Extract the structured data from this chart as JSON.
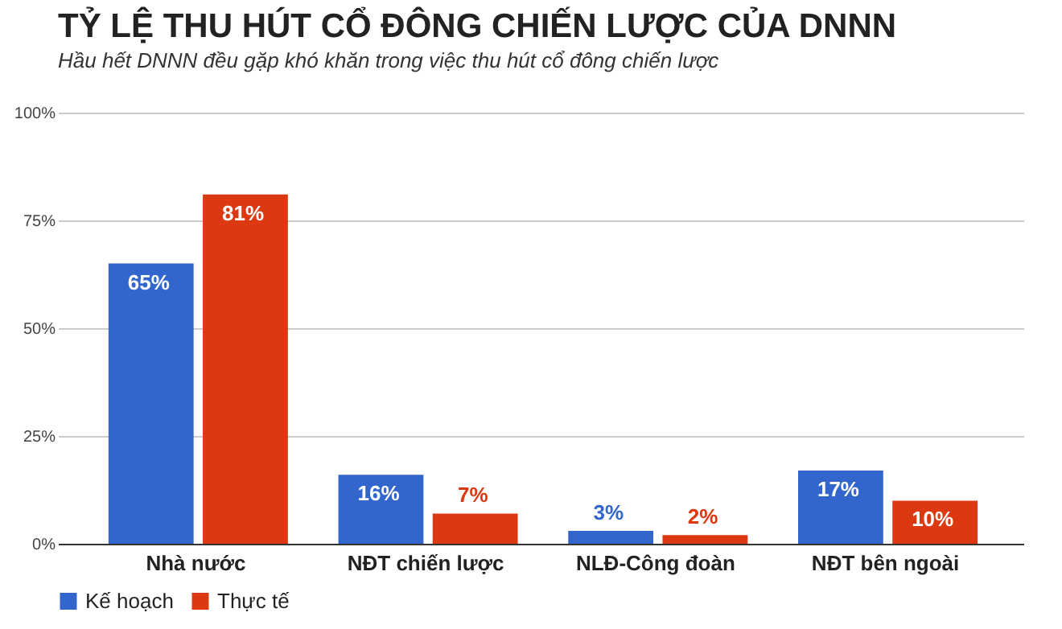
{
  "chart_data": {
    "type": "bar",
    "title": "TỶ LỆ THU HÚT CỔ ĐÔNG CHIẾN LƯỢC CỦA DNNN",
    "subtitle": "Hầu hết DNNN đều gặp khó khăn trong việc thu hút cổ đông chiến lược",
    "categories": [
      "Nhà nước",
      "NĐT chiến lược",
      "NLĐ-Công đoàn",
      "NĐT bên ngoài"
    ],
    "series": [
      {
        "name": "Kế hoạch",
        "color": "#3366cc",
        "values": [
          65,
          16,
          3,
          17
        ],
        "value_labels": [
          "65%",
          "16%",
          "3%",
          "17%"
        ]
      },
      {
        "name": "Thực tế",
        "color": "#dc3912",
        "values": [
          81,
          7,
          2,
          10
        ],
        "value_labels": [
          "81%",
          "7%",
          "2%",
          "10%"
        ]
      }
    ],
    "ylim": [
      0,
      100
    ],
    "yticks": [
      {
        "value": 0,
        "label": "0%"
      },
      {
        "value": 25,
        "label": "25%"
      },
      {
        "value": 50,
        "label": "50%"
      },
      {
        "value": 75,
        "label": "75%"
      },
      {
        "value": 100,
        "label": "100%"
      }
    ],
    "grid": "y",
    "legend": "bottom"
  }
}
